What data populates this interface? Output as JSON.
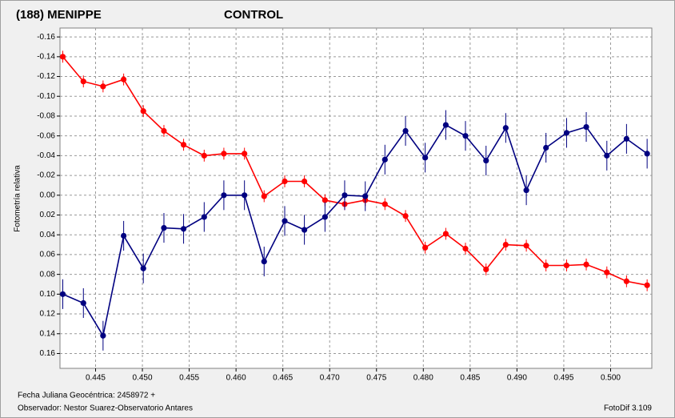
{
  "chart_data": {
    "type": "line",
    "y_label": "Fotometría relativa",
    "x_note": "Fecha Juliana Geocéntrica: 2458972 +",
    "observer": "Observador: Nestor Suarez-Observatorio Antares",
    "software": "FotoDif 3.109",
    "x": [
      0.4415,
      0.4437,
      0.4458,
      0.448,
      0.4501,
      0.4523,
      0.4544,
      0.4566,
      0.4587,
      0.4609,
      0.463,
      0.4652,
      0.4673,
      0.4695,
      0.4716,
      0.4738,
      0.4759,
      0.4781,
      0.4802,
      0.4824,
      0.4845,
      0.4867,
      0.4888,
      0.491,
      0.4931,
      0.4953,
      0.4974,
      0.4996,
      0.5017,
      0.5039
    ],
    "series": [
      {
        "name": "(188) MENIPPE",
        "color": "#ff0000",
        "values": [
          -0.14,
          -0.115,
          -0.11,
          -0.117,
          -0.085,
          -0.065,
          -0.051,
          -0.04,
          -0.042,
          -0.042,
          0.001,
          -0.014,
          -0.014,
          0.005,
          0.009,
          0.005,
          0.009,
          0.021,
          0.053,
          0.039,
          0.054,
          0.075,
          0.05,
          0.051,
          0.071,
          0.071,
          0.07,
          0.078,
          0.087,
          0.091
        ],
        "errors": [
          0.006,
          0.006,
          0.006,
          0.006,
          0.006,
          0.006,
          0.006,
          0.006,
          0.006,
          0.006,
          0.006,
          0.006,
          0.006,
          0.006,
          0.006,
          0.006,
          0.006,
          0.006,
          0.006,
          0.006,
          0.006,
          0.006,
          0.006,
          0.006,
          0.006,
          0.006,
          0.006,
          0.006,
          0.006,
          0.006
        ]
      },
      {
        "name": "CONTROL",
        "color": "#000080",
        "values": [
          0.1,
          0.109,
          0.142,
          0.041,
          0.074,
          0.033,
          0.034,
          0.022,
          0.0,
          0.0,
          0.067,
          0.026,
          0.035,
          0.022,
          0.0,
          0.001,
          -0.036,
          -0.065,
          -0.038,
          -0.071,
          -0.06,
          -0.035,
          -0.068,
          -0.005,
          -0.048,
          -0.063,
          -0.069,
          -0.04,
          -0.057,
          -0.042
        ],
        "errors": [
          0.015,
          0.015,
          0.015,
          0.015,
          0.015,
          0.015,
          0.015,
          0.015,
          0.015,
          0.015,
          0.015,
          0.015,
          0.015,
          0.015,
          0.015,
          0.015,
          0.015,
          0.015,
          0.015,
          0.015,
          0.015,
          0.015,
          0.015,
          0.015,
          0.015,
          0.015,
          0.015,
          0.015,
          0.015,
          0.015
        ]
      }
    ],
    "xlim": [
      0.4412,
      0.5044
    ],
    "ylim": [
      -0.169,
      0.175
    ],
    "y_inverted": true,
    "grid": true,
    "xticks": [
      0.445,
      {
        "value": 0.45,
        "label": "0.450"
      },
      0.455,
      {
        "value": 0.46,
        "label": "0.460"
      },
      0.465,
      {
        "value": 0.47,
        "label": "0.470"
      },
      0.475,
      {
        "value": 0.48,
        "label": "0.480"
      },
      0.485,
      {
        "value": 0.49,
        "label": "0.490"
      },
      0.495,
      {
        "value": 0.5,
        "label": "0.500"
      }
    ],
    "yticks": [
      -0.16,
      -0.14,
      -0.12,
      {
        "value": -0.1,
        "label": "-0.10"
      },
      -0.08,
      -0.06,
      -0.04,
      -0.02,
      {
        "value": 0,
        "label": "0.00"
      },
      0.02,
      0.04,
      0.06,
      0.08,
      {
        "value": 0.1,
        "label": "0.10"
      },
      0.12,
      0.14,
      0.16
    ]
  }
}
